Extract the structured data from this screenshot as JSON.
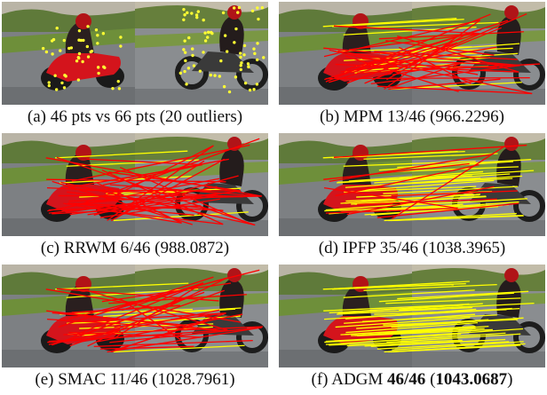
{
  "panels": [
    {
      "caption": {
        "letter": "(a)",
        "text": "46 pts vs 66 pts (20 outliers)"
      }
    },
    {
      "caption": {
        "letter": "(b)",
        "text": "MPM 13/46 (966.2296)"
      }
    },
    {
      "caption": {
        "letter": "(c)",
        "text": "RRWM 6/46 (988.0872)"
      }
    },
    {
      "caption": {
        "letter": "(d)",
        "text": "IPFP 35/46 (1038.3965)"
      }
    },
    {
      "caption": {
        "letter": "(e)",
        "text": "SMAC 11/46 (1028.7961)"
      }
    },
    {
      "caption": {
        "letter": "(f)",
        "method": "ADGM",
        "score": "46/46",
        "value": "1043.0687"
      }
    }
  ],
  "colors": {
    "correct_match": "#ffff00",
    "wrong_match": "#ff0000",
    "keypoint": "#ffff33",
    "track": "#8a8c8e",
    "grass": "#6e8f3a"
  },
  "matches": {
    "a": {
      "correct": 0,
      "wrong": 0,
      "keypoints_left": 46,
      "keypoints_right": 66
    },
    "b": {
      "correct": 13,
      "wrong": 33
    },
    "c": {
      "correct": 6,
      "wrong": 40
    },
    "d": {
      "correct": 35,
      "wrong": 11
    },
    "e": {
      "correct": 11,
      "wrong": 35
    },
    "f": {
      "correct": 46,
      "wrong": 0
    }
  }
}
